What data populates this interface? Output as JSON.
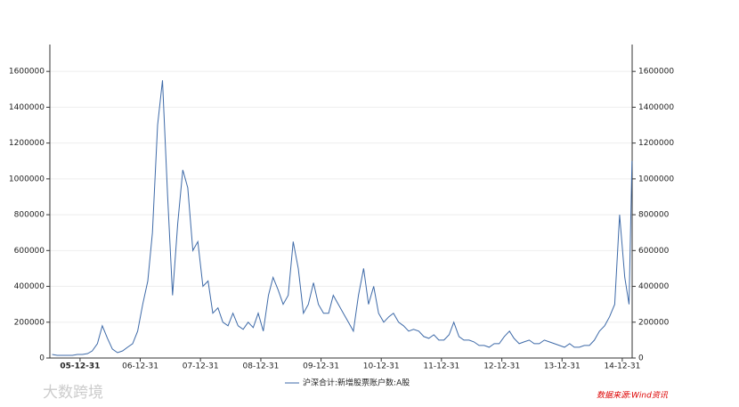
{
  "chart_data": {
    "type": "line",
    "x": [
      "05-07-15",
      "05-08-15",
      "05-09-15",
      "05-10-15",
      "05-11-15",
      "05-12-15",
      "06-01-15",
      "06-02-15",
      "06-03-15",
      "06-04-15",
      "06-05-15",
      "06-06-15",
      "06-07-15",
      "06-08-15",
      "06-09-15",
      "06-10-15",
      "06-11-15",
      "06-12-15",
      "07-01-15",
      "07-02-15",
      "07-03-15",
      "07-04-15",
      "07-05-15",
      "07-06-15",
      "07-07-15",
      "07-08-15",
      "07-09-15",
      "07-10-15",
      "07-11-15",
      "07-12-15",
      "08-01-15",
      "08-02-15",
      "08-03-15",
      "08-04-15",
      "08-05-15",
      "08-06-15",
      "08-07-15",
      "08-08-15",
      "08-09-15",
      "08-10-15",
      "08-11-15",
      "08-12-15",
      "09-01-15",
      "09-02-15",
      "09-03-15",
      "09-04-15",
      "09-05-15",
      "09-06-15",
      "09-07-15",
      "09-08-15",
      "09-09-15",
      "09-10-15",
      "09-11-15",
      "09-12-15",
      "10-01-15",
      "10-02-15",
      "10-03-15",
      "10-04-15",
      "10-05-15",
      "10-06-15",
      "10-07-15",
      "10-08-15",
      "10-09-15",
      "10-10-15",
      "10-11-15",
      "10-12-15",
      "11-01-15",
      "11-02-15",
      "11-03-15",
      "11-04-15",
      "11-05-15",
      "11-06-15",
      "11-07-15",
      "11-08-15",
      "11-09-15",
      "11-10-15",
      "11-11-15",
      "11-12-15",
      "12-01-15",
      "12-02-15",
      "12-03-15",
      "12-04-15",
      "12-05-15",
      "12-06-15",
      "12-07-15",
      "12-08-15",
      "12-09-15",
      "12-10-15",
      "12-11-15",
      "12-12-15",
      "13-01-15",
      "13-02-15",
      "13-03-15",
      "13-04-15",
      "13-05-15",
      "13-06-15",
      "13-07-15",
      "13-08-15",
      "13-09-15",
      "13-10-15",
      "13-11-15",
      "13-12-15",
      "14-01-15",
      "14-02-15",
      "14-03-15",
      "14-04-15",
      "14-05-15",
      "14-06-15",
      "14-07-15",
      "14-08-15",
      "14-09-15",
      "14-10-15",
      "14-11-15",
      "14-12-15",
      "15-01-15",
      "15-02-10",
      "15-02-28"
    ],
    "series": [
      {
        "name": "沪深合计:新增股票账户数:A股",
        "color": "#3e6aa8",
        "values": [
          20000,
          15000,
          15000,
          15000,
          15000,
          20000,
          20000,
          25000,
          40000,
          80000,
          180000,
          110000,
          50000,
          30000,
          40000,
          60000,
          80000,
          150000,
          300000,
          430000,
          700000,
          1300000,
          1550000,
          900000,
          350000,
          750000,
          1050000,
          950000,
          600000,
          650000,
          400000,
          430000,
          250000,
          280000,
          200000,
          180000,
          250000,
          180000,
          160000,
          200000,
          170000,
          250000,
          150000,
          350000,
          450000,
          380000,
          300000,
          350000,
          650000,
          500000,
          250000,
          300000,
          420000,
          300000,
          250000,
          250000,
          350000,
          300000,
          250000,
          200000,
          150000,
          350000,
          500000,
          300000,
          400000,
          250000,
          200000,
          230000,
          250000,
          200000,
          180000,
          150000,
          160000,
          150000,
          120000,
          110000,
          130000,
          100000,
          100000,
          130000,
          200000,
          120000,
          100000,
          100000,
          90000,
          70000,
          70000,
          60000,
          80000,
          80000,
          120000,
          150000,
          110000,
          80000,
          90000,
          100000,
          80000,
          80000,
          100000,
          90000,
          80000,
          70000,
          60000,
          80000,
          60000,
          60000,
          70000,
          70000,
          100000,
          150000,
          180000,
          230000,
          300000,
          800000,
          450000,
          300000,
          1100000
        ]
      }
    ],
    "xlim": [
      "05-07-01",
      "15-03-01"
    ],
    "xticks": [
      "05-12-31",
      "06-12-31",
      "07-12-31",
      "08-12-31",
      "09-12-31",
      "10-12-31",
      "11-12-31",
      "12-12-31",
      "13-12-31",
      "14-12-31"
    ],
    "ylim": [
      0,
      1750000
    ],
    "yticks": [
      0,
      200000,
      400000,
      600000,
      800000,
      1000000,
      1200000,
      1400000,
      1600000
    ],
    "y2lim": [
      0,
      1750000
    ],
    "y2ticks": [
      0,
      200000,
      400000,
      600000,
      800000,
      1000000,
      1200000,
      1400000,
      1600000
    ],
    "grid": true,
    "source": "数据来源:Wind资讯",
    "watermark": "大数跨境"
  }
}
